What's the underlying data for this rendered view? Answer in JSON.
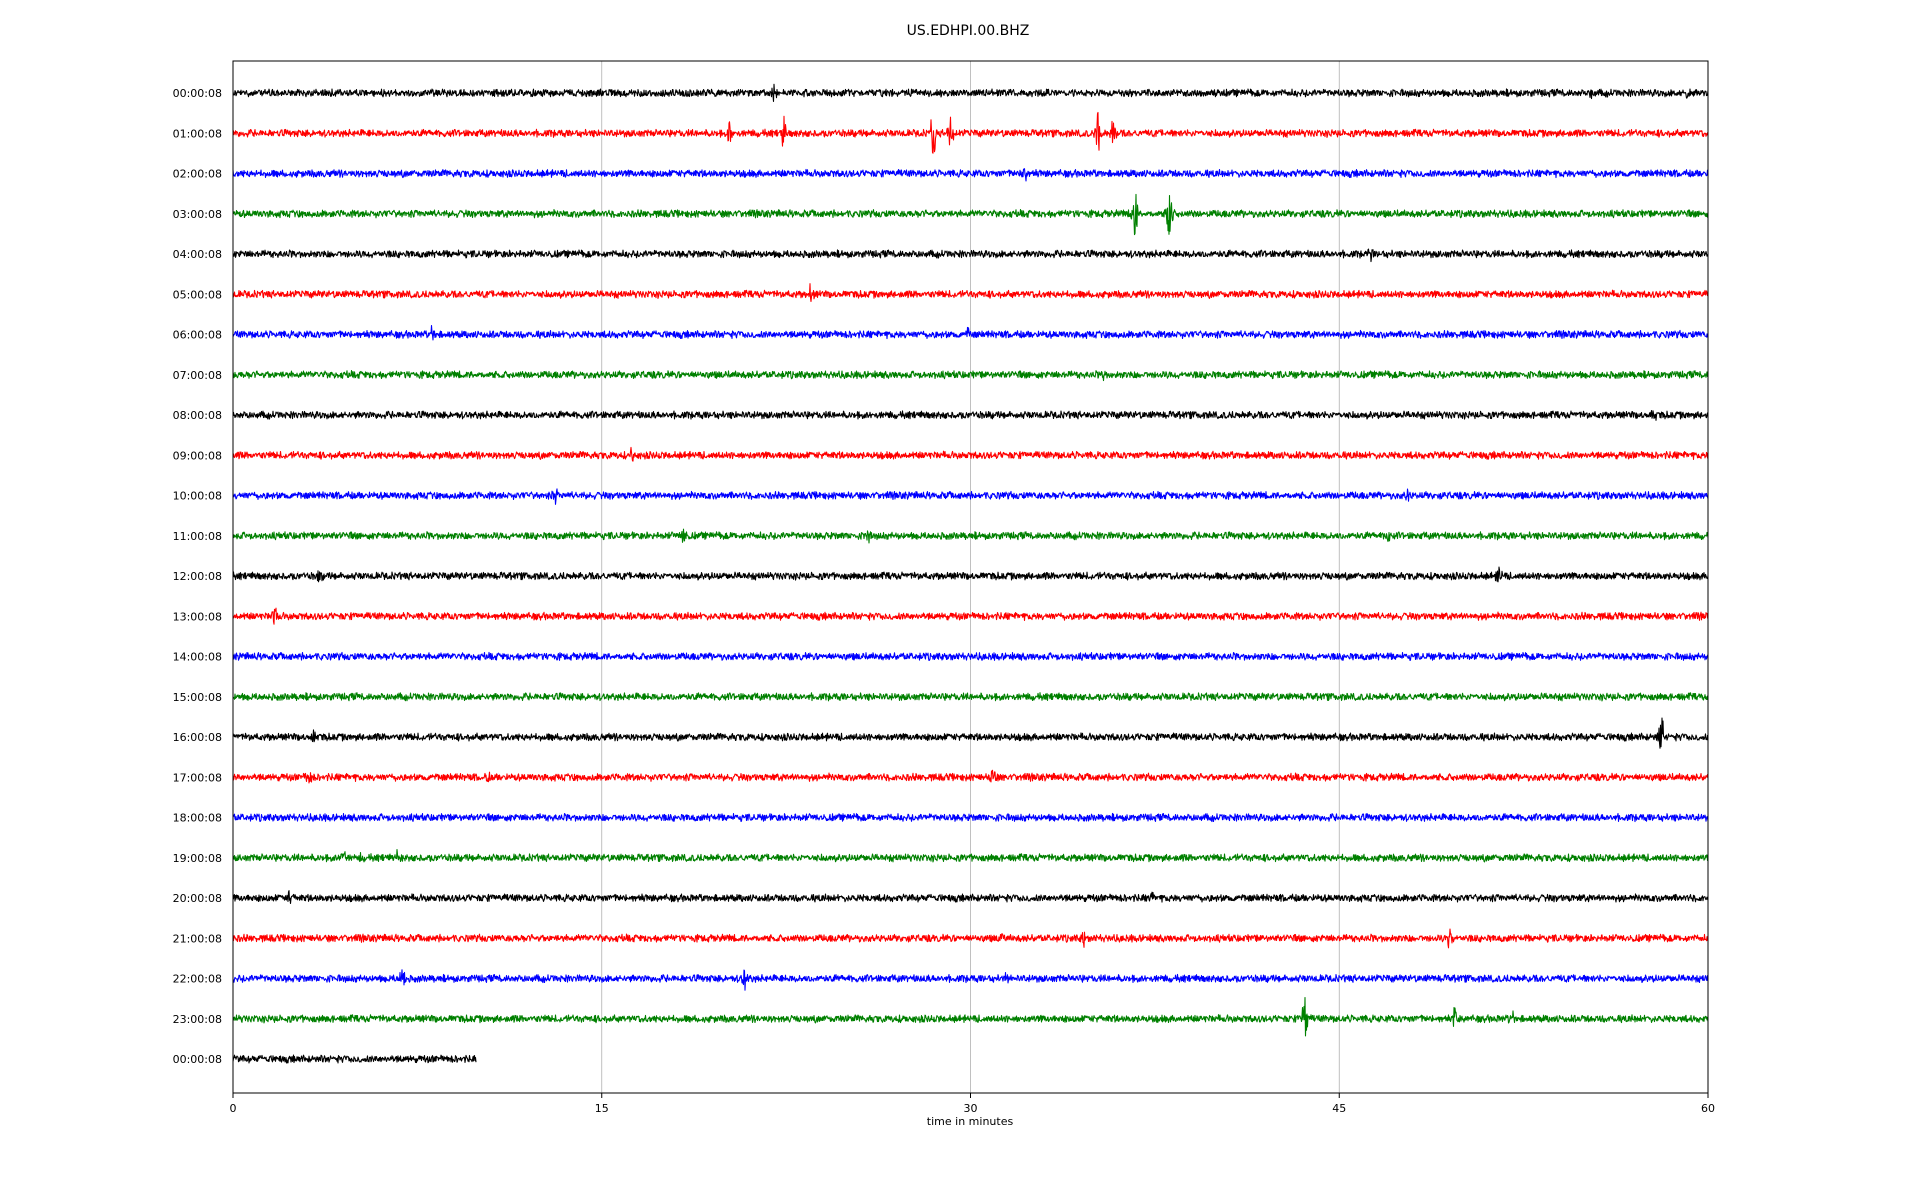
{
  "chart_data": {
    "type": "line",
    "title": "US.EDHPI.00.BHZ",
    "xlabel": "time in minutes",
    "ylabel": "",
    "xlim": [
      0,
      60
    ],
    "x_ticks": [
      0,
      15,
      30,
      45,
      60
    ],
    "x_tick_labels": [
      "0",
      "15",
      "30",
      "45",
      "60"
    ],
    "grid": "vertical lines at x ticks",
    "legend": "none",
    "series": [
      {
        "label": "00:00:08",
        "color": "#000000",
        "x_end": 60,
        "events": [
          {
            "t": 22,
            "amp": 0.3
          },
          {
            "t": 55.2,
            "amp": 0.3
          },
          {
            "t": 59.2,
            "amp": 0.3
          }
        ]
      },
      {
        "label": "01:00:08",
        "color": "#ff0000",
        "x_end": 60,
        "events": [
          {
            "t": 20.2,
            "amp": 0.45
          },
          {
            "t": 22.4,
            "amp": 0.6
          },
          {
            "t": 28.5,
            "amp": 1.2
          },
          {
            "t": 29.2,
            "amp": 0.7
          },
          {
            "t": 35.2,
            "amp": 1.0
          },
          {
            "t": 35.8,
            "amp": 0.5
          }
        ]
      },
      {
        "label": "02:00:08",
        "color": "#0000ff",
        "x_end": 60,
        "events": [
          {
            "t": 32.2,
            "amp": 0.35
          }
        ]
      },
      {
        "label": "03:00:08",
        "color": "#008000",
        "x_end": 60,
        "events": [
          {
            "t": 36.7,
            "amp": 1.1
          },
          {
            "t": 38.1,
            "amp": 1.1
          }
        ]
      },
      {
        "label": "04:00:08",
        "color": "#000000",
        "x_end": 60,
        "events": [
          {
            "t": 46.3,
            "amp": 0.3
          }
        ]
      },
      {
        "label": "05:00:08",
        "color": "#ff0000",
        "x_end": 60,
        "events": [
          {
            "t": 23.5,
            "amp": 0.35
          }
        ]
      },
      {
        "label": "06:00:08",
        "color": "#0000ff",
        "x_end": 60,
        "events": [
          {
            "t": 8.1,
            "amp": 0.3
          },
          {
            "t": 29.9,
            "amp": 0.25
          }
        ]
      },
      {
        "label": "07:00:08",
        "color": "#008000",
        "x_end": 60,
        "events": [
          {
            "t": 35.4,
            "amp": 0.25
          }
        ]
      },
      {
        "label": "08:00:08",
        "color": "#000000",
        "x_end": 60,
        "events": [
          {
            "t": 57.8,
            "amp": 0.25
          }
        ]
      },
      {
        "label": "09:00:08",
        "color": "#ff0000",
        "x_end": 60,
        "events": [
          {
            "t": 16.2,
            "amp": 0.25
          }
        ]
      },
      {
        "label": "10:00:08",
        "color": "#0000ff",
        "x_end": 60,
        "events": [
          {
            "t": 13.1,
            "amp": 0.3
          },
          {
            "t": 47.8,
            "amp": 0.25
          }
        ]
      },
      {
        "label": "11:00:08",
        "color": "#008000",
        "x_end": 60,
        "events": [
          {
            "t": 18.3,
            "amp": 0.3
          },
          {
            "t": 25.8,
            "amp": 0.3
          },
          {
            "t": 47,
            "amp": 0.3
          }
        ]
      },
      {
        "label": "12:00:08",
        "color": "#000000",
        "x_end": 60,
        "events": [
          {
            "t": 3.5,
            "amp": 0.25
          },
          {
            "t": 51.5,
            "amp": 0.3
          }
        ]
      },
      {
        "label": "13:00:08",
        "color": "#ff0000",
        "x_end": 60,
        "events": [
          {
            "t": 1.7,
            "amp": 0.35
          }
        ]
      },
      {
        "label": "14:00:08",
        "color": "#0000ff",
        "x_end": 60,
        "events": []
      },
      {
        "label": "15:00:08",
        "color": "#008000",
        "x_end": 60,
        "events": []
      },
      {
        "label": "16:00:08",
        "color": "#000000",
        "x_end": 60,
        "events": [
          {
            "t": 3.3,
            "amp": 0.3
          },
          {
            "t": 58.1,
            "amp": 0.85
          }
        ]
      },
      {
        "label": "17:00:08",
        "color": "#ff0000",
        "x_end": 60,
        "events": [
          {
            "t": 3.1,
            "amp": 0.3
          },
          {
            "t": 10.3,
            "amp": 0.3
          },
          {
            "t": 30.9,
            "amp": 0.3
          }
        ]
      },
      {
        "label": "18:00:08",
        "color": "#0000ff",
        "x_end": 60,
        "events": []
      },
      {
        "label": "19:00:08",
        "color": "#008000",
        "x_end": 60,
        "events": [
          {
            "t": 4.5,
            "amp": 0.3
          },
          {
            "t": 5.2,
            "amp": 0.3
          },
          {
            "t": 6.7,
            "amp": 0.25
          }
        ]
      },
      {
        "label": "20:00:08",
        "color": "#000000",
        "x_end": 60,
        "events": [
          {
            "t": 2.3,
            "amp": 0.3
          },
          {
            "t": 37.3,
            "amp": 0.25
          }
        ]
      },
      {
        "label": "21:00:08",
        "color": "#ff0000",
        "x_end": 60,
        "events": [
          {
            "t": 31.3,
            "amp": 0.3
          },
          {
            "t": 34.6,
            "amp": 0.25
          },
          {
            "t": 49.5,
            "amp": 0.4
          }
        ]
      },
      {
        "label": "22:00:08",
        "color": "#0000ff",
        "x_end": 60,
        "events": [
          {
            "t": 6.9,
            "amp": 0.55
          },
          {
            "t": 20.8,
            "amp": 0.6
          },
          {
            "t": 31.5,
            "amp": 0.25
          }
        ]
      },
      {
        "label": "23:00:08",
        "color": "#008000",
        "x_end": 60,
        "events": [
          {
            "t": 43.6,
            "amp": 0.85
          },
          {
            "t": 49.7,
            "amp": 0.4
          },
          {
            "t": 52,
            "amp": 0.35
          }
        ]
      },
      {
        "label": "00:00:08",
        "color": "#000000",
        "x_end": 9.9,
        "events": []
      }
    ]
  }
}
